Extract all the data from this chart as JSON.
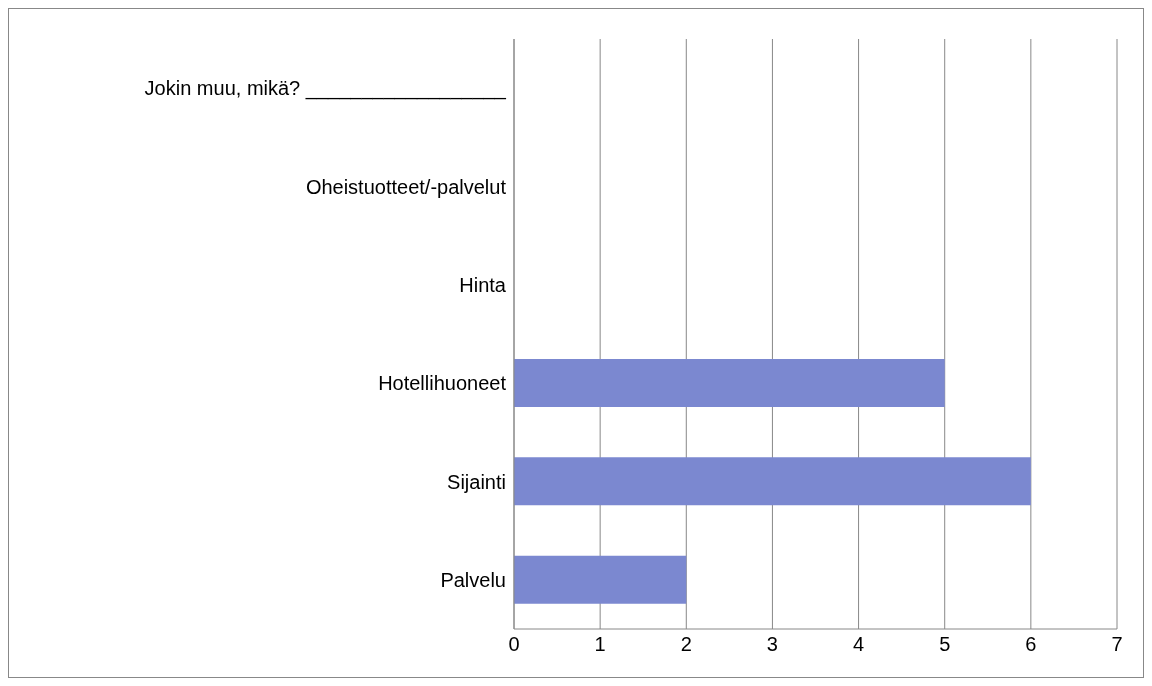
{
  "chart_data": {
    "type": "bar",
    "orientation": "horizontal",
    "categories": [
      "Jokin muu, mikä? __________________",
      "Oheistuotteet/-palvelut",
      "Hinta",
      "Hotellihuoneet",
      "Sijainti",
      "Palvelu"
    ],
    "values": [
      0,
      0,
      0,
      5,
      6,
      2
    ],
    "color": "#7b88d0",
    "xlim": [
      0,
      7
    ],
    "xticks": [
      0,
      1,
      2,
      3,
      4,
      5,
      6,
      7
    ],
    "grid": "x",
    "legend": false
  }
}
